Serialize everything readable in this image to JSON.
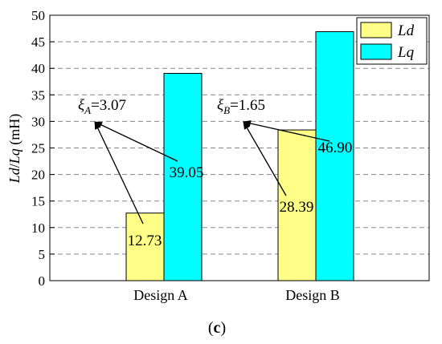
{
  "chart_data": {
    "type": "bar",
    "categories": [
      "Design A",
      "Design B"
    ],
    "series": [
      {
        "name": "Ld",
        "values": [
          12.73,
          28.39
        ],
        "color": "#FFFF88"
      },
      {
        "name": "Lq",
        "values": [
          39.05,
          46.9
        ],
        "color": "#00FFFF"
      }
    ],
    "value_labels": {
      "Ld": [
        "12.73",
        "28.39"
      ],
      "Lq": [
        "39.05",
        "46.90"
      ]
    },
    "ylabel_parts": [
      "Ld",
      "/",
      "Lq",
      " (mH)"
    ],
    "ylim": [
      0,
      50
    ],
    "yticks": [
      0,
      5,
      10,
      15,
      20,
      25,
      30,
      35,
      40,
      45,
      50
    ],
    "grid": "horizontal-dashed",
    "legend_position": "top-right",
    "annotations": [
      {
        "symbol": "ξ",
        "subscript": "A",
        "text": "=3.07"
      },
      {
        "symbol": "ξ",
        "subscript": "B",
        "text": "=1.65"
      }
    ],
    "caption_parts": [
      "(",
      "c",
      ")"
    ]
  }
}
